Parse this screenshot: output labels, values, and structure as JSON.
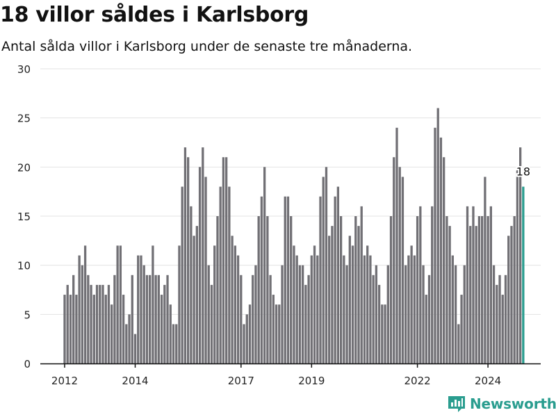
{
  "title": "18 villor såldes i Karlsborg",
  "subtitle": "Antal sålda villor i Karlsborg under de senaste tre månaderna.",
  "brand": {
    "name": "Newsworthy",
    "icon": "newsworthy-logo-icon",
    "color": "#2a9d8f"
  },
  "chart_data": {
    "type": "bar",
    "title": "18 villor såldes i Karlsborg",
    "subtitle": "Antal sålda villor i Karlsborg under de senaste tre månaderna.",
    "xlabel": "",
    "ylabel": "",
    "ylim": [
      0,
      30
    ],
    "yticks": [
      0,
      5,
      10,
      15,
      20,
      25,
      30
    ],
    "xticks": [
      {
        "label": "2012",
        "at_index": 0
      },
      {
        "label": "2014",
        "at_index": 24
      },
      {
        "label": "2017",
        "at_index": 60
      },
      {
        "label": "2019",
        "at_index": 84
      },
      {
        "label": "2022",
        "at_index": 120
      },
      {
        "label": "2024",
        "at_index": 144
      }
    ],
    "grid": true,
    "bar_color": "#717075",
    "highlight_color": "#2a9d8f",
    "highlight_label": "18",
    "values": [
      7,
      8,
      7,
      9,
      7,
      11,
      10,
      12,
      9,
      8,
      7,
      8,
      8,
      8,
      7,
      8,
      6,
      9,
      12,
      12,
      7,
      4,
      5,
      9,
      3,
      11,
      11,
      10,
      9,
      9,
      12,
      9,
      9,
      7,
      8,
      9,
      6,
      4,
      4,
      12,
      18,
      22,
      21,
      16,
      13,
      14,
      20,
      22,
      19,
      10,
      8,
      12,
      15,
      18,
      21,
      21,
      18,
      13,
      12,
      11,
      9,
      4,
      5,
      6,
      9,
      10,
      15,
      17,
      20,
      15,
      9,
      7,
      6,
      6,
      10,
      17,
      17,
      15,
      12,
      11,
      10,
      10,
      8,
      9,
      11,
      12,
      11,
      17,
      19,
      20,
      13,
      14,
      17,
      18,
      15,
      11,
      10,
      13,
      12,
      15,
      14,
      16,
      11,
      12,
      11,
      9,
      10,
      8,
      6,
      6,
      10,
      15,
      21,
      24,
      20,
      19,
      10,
      11,
      12,
      11,
      15,
      16,
      10,
      7,
      9,
      16,
      24,
      26,
      23,
      21,
      15,
      14,
      11,
      10,
      4,
      7,
      10,
      16,
      14,
      16,
      14,
      15,
      15,
      19,
      15,
      16,
      10,
      8,
      9,
      7,
      9,
      13,
      14,
      15,
      20,
      22,
      18
    ]
  }
}
